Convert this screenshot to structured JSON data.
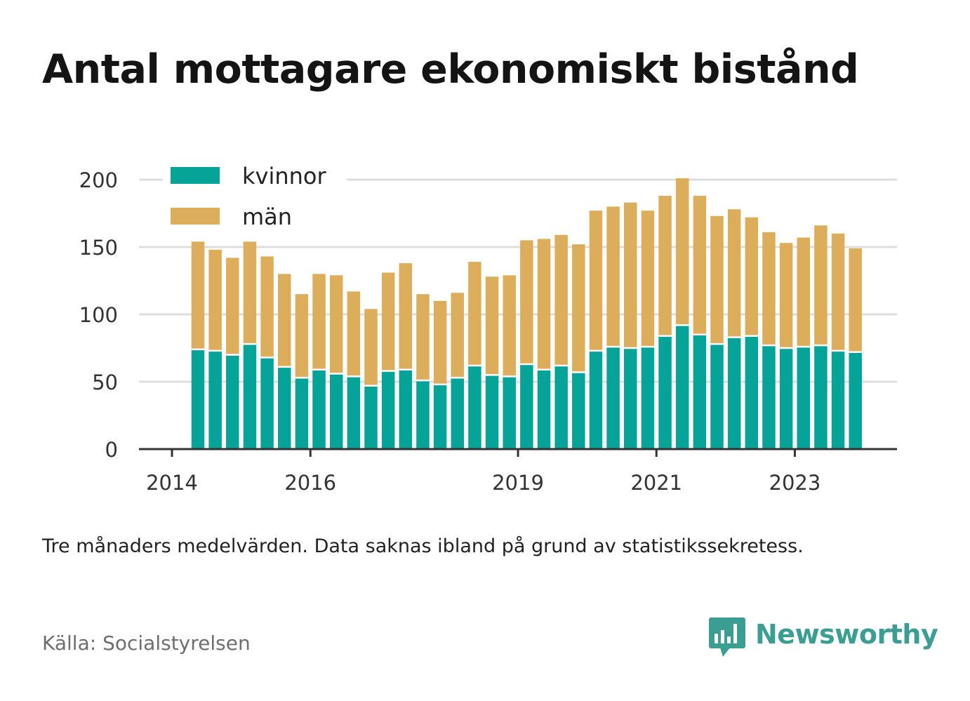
{
  "title": "Antal mottagare ekonomiskt bistånd",
  "note": "Tre månaders medelvärden. Data saknas ibland på grund av statistikssekretess.",
  "source": "Källa: Socialstyrelsen",
  "brand": {
    "name": "Newsworthy",
    "icon": "newsworthy-logo-icon",
    "color": "#3a9e92"
  },
  "colors": {
    "kvinnor": "#05a398",
    "man": "#dcae5b",
    "grid": "#dddddd",
    "axis": "#333333"
  },
  "chart_data": {
    "type": "bar",
    "stacked": true,
    "legend_position": "top-left",
    "grid": true,
    "ylim": [
      0,
      200
    ],
    "yticks": [
      0,
      50,
      100,
      150,
      200
    ],
    "xtick_labels": [
      "2014",
      "2016",
      "2019",
      "2021",
      "2023"
    ],
    "xtick_bar_index": [
      -1,
      7,
      19,
      27,
      35
    ],
    "series": [
      {
        "name": "kvinnor",
        "values": [
          74,
          73,
          70,
          78,
          68,
          61,
          53,
          59,
          56,
          54,
          47,
          58,
          59,
          51,
          48,
          53,
          62,
          55,
          54,
          63,
          59,
          62,
          57,
          73,
          76,
          75,
          76,
          84,
          92,
          85,
          78,
          83,
          84,
          77,
          75,
          76,
          77,
          73,
          72
        ]
      },
      {
        "name": "män",
        "values": [
          80,
          75,
          72,
          76,
          75,
          69,
          62,
          71,
          73,
          63,
          57,
          73,
          79,
          64,
          62,
          63,
          77,
          73,
          75,
          92,
          97,
          97,
          95,
          104,
          104,
          108,
          101,
          104,
          109,
          103,
          95,
          95,
          88,
          84,
          78,
          81,
          89,
          87,
          77
        ]
      }
    ]
  }
}
